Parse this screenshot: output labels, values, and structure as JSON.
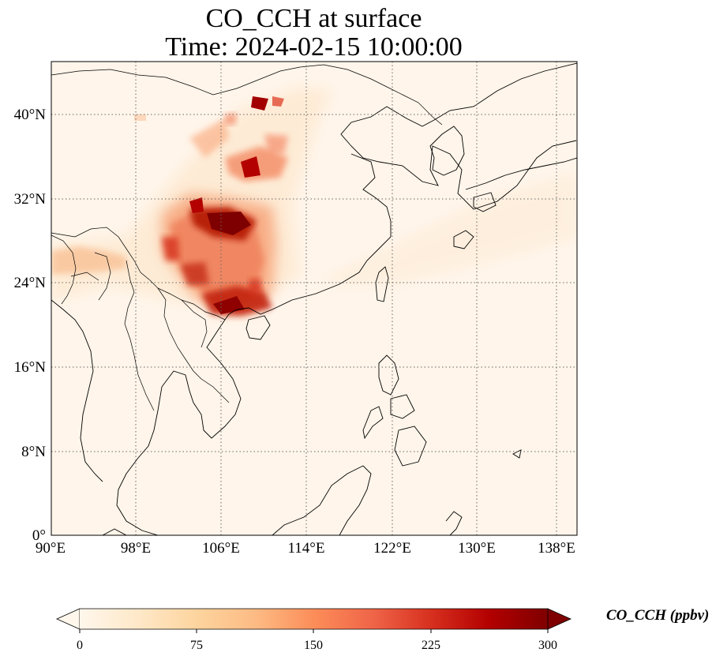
{
  "title": {
    "line1": "CO_CCH at surface",
    "line2": "Time: 2024-02-15 10:00:00"
  },
  "map": {
    "variable": "CO_CCH",
    "level": "surface",
    "time": "2024-02-15 10:00:00",
    "lon_range": [
      90,
      139
    ],
    "lat_range": [
      0,
      45
    ],
    "lon_ticks": [
      "90°E",
      "98°E",
      "106°E",
      "114°E",
      "122°E",
      "130°E",
      "138°E"
    ],
    "lat_ticks": [
      "0°",
      "8°N",
      "16°N",
      "24°N",
      "32°N",
      "40°N"
    ],
    "gridlines": "dotted",
    "coastlines": true,
    "borders": true
  },
  "colorbar": {
    "label": "CO_CCH (ppbv)",
    "cmap": "OrRd",
    "extend": "both",
    "min": 0,
    "max": 300,
    "ticks": [
      "0",
      "75",
      "150",
      "225",
      "300"
    ],
    "colors": [
      "#fff7ec",
      "#fee8c8",
      "#fdd49e",
      "#fdbb84",
      "#fc8d59",
      "#ef6548",
      "#d7301f",
      "#b30000",
      "#7f0000"
    ]
  }
}
